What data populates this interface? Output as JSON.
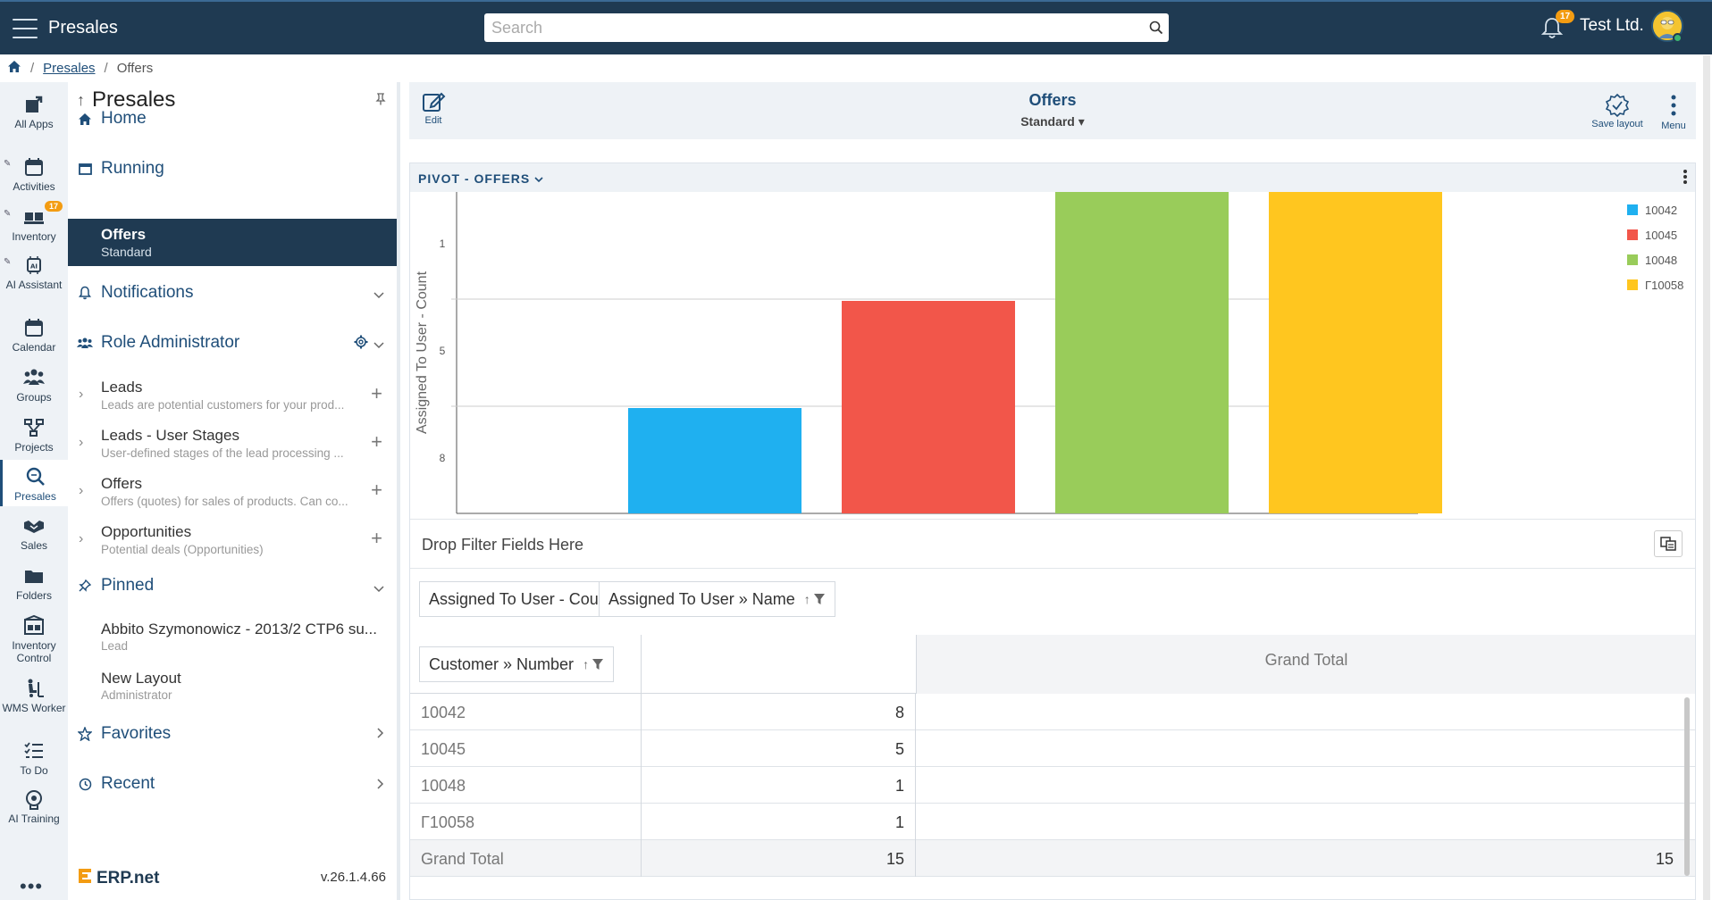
{
  "topbar": {
    "title": "Presales",
    "search_placeholder": "Search",
    "notifications_count": "17",
    "company": "Test Ltd."
  },
  "breadcrumb": {
    "items": [
      "Presales",
      "Offers"
    ]
  },
  "rail": {
    "items": [
      {
        "label": "All Apps",
        "icon": "grid-arrow-icon"
      },
      {
        "label": "Activities",
        "icon": "calendar-icon"
      },
      {
        "label": "Inventory",
        "icon": "boxes-icon",
        "badge": "17"
      },
      {
        "label": "AI Assistant",
        "icon": "ai-chip-icon"
      },
      {
        "label": "Calendar",
        "icon": "calendar-icon"
      },
      {
        "label": "Groups",
        "icon": "people-icon"
      },
      {
        "label": "Projects",
        "icon": "project-icon"
      },
      {
        "label": "Presales",
        "icon": "search-doc-icon"
      },
      {
        "label": "Sales",
        "icon": "handshake-icon"
      },
      {
        "label": "Folders",
        "icon": "folder-icon"
      },
      {
        "label": "Inventory Control",
        "icon": "inventory-control-icon"
      },
      {
        "label": "WMS Worker",
        "icon": "forklift-icon"
      },
      {
        "label": "To Do",
        "icon": "checklist-icon"
      },
      {
        "label": "AI Training",
        "icon": "ai-training-icon"
      }
    ]
  },
  "sidebar": {
    "title": "Presales",
    "home": "Home",
    "running": "Running",
    "active": {
      "title": "Offers",
      "subtitle": "Standard"
    },
    "notifications": "Notifications",
    "role": "Role Administrator",
    "entities": [
      {
        "title": "Leads",
        "desc": "Leads are potential customers for your prod..."
      },
      {
        "title": "Leads - User Stages",
        "desc": "User-defined stages of the lead processing ..."
      },
      {
        "title": "Offers",
        "desc": "Offers (quotes) for sales of products. Can co..."
      },
      {
        "title": "Opportunities",
        "desc": "Potential deals (Opportunities)"
      }
    ],
    "pinned": "Pinned",
    "pinned_items": [
      {
        "title": "Abbito Szymonowicz - 2013/2 CTP6 su...",
        "desc": "Lead"
      },
      {
        "title": "New Layout",
        "desc": "Administrator"
      }
    ],
    "favorites": "Favorites",
    "recent": "Recent",
    "brand": "ERP.net",
    "version": "v.26.1.4.66"
  },
  "header": {
    "edit_label": "Edit",
    "title": "Offers",
    "layout": "Standard",
    "save_label": "Save layout",
    "menu_label": "Menu"
  },
  "panel": {
    "title": "PIVOT - OFFERS",
    "drop_filter": "Drop Filter Fields Here",
    "data_field": "Assigned To User - Count",
    "column_field": "Assigned To User » Name",
    "row_field": "Customer » Number",
    "grand_total_header": "Grand Total",
    "rows": [
      {
        "label": "10042",
        "value": "8",
        "total": ""
      },
      {
        "label": "10045",
        "value": "5",
        "total": ""
      },
      {
        "label": "10048",
        "value": "1",
        "total": ""
      },
      {
        "label": "Γ10058",
        "value": "1",
        "total": ""
      }
    ],
    "grand_total": {
      "label": "Grand Total",
      "value": "15",
      "total": "15"
    }
  },
  "chart_data": {
    "type": "bar",
    "categories": [
      "10042",
      "10045",
      "10048",
      "Γ10058"
    ],
    "values": [
      8,
      5,
      1,
      1
    ],
    "colors": [
      "#1fb0f0",
      "#f2564a",
      "#99cc5a",
      "#ffc61f"
    ],
    "ylabel": "Assigned To User - Count",
    "yticks": [
      "1",
      "5",
      "8"
    ],
    "legend_position": "top-right",
    "grid": true
  }
}
